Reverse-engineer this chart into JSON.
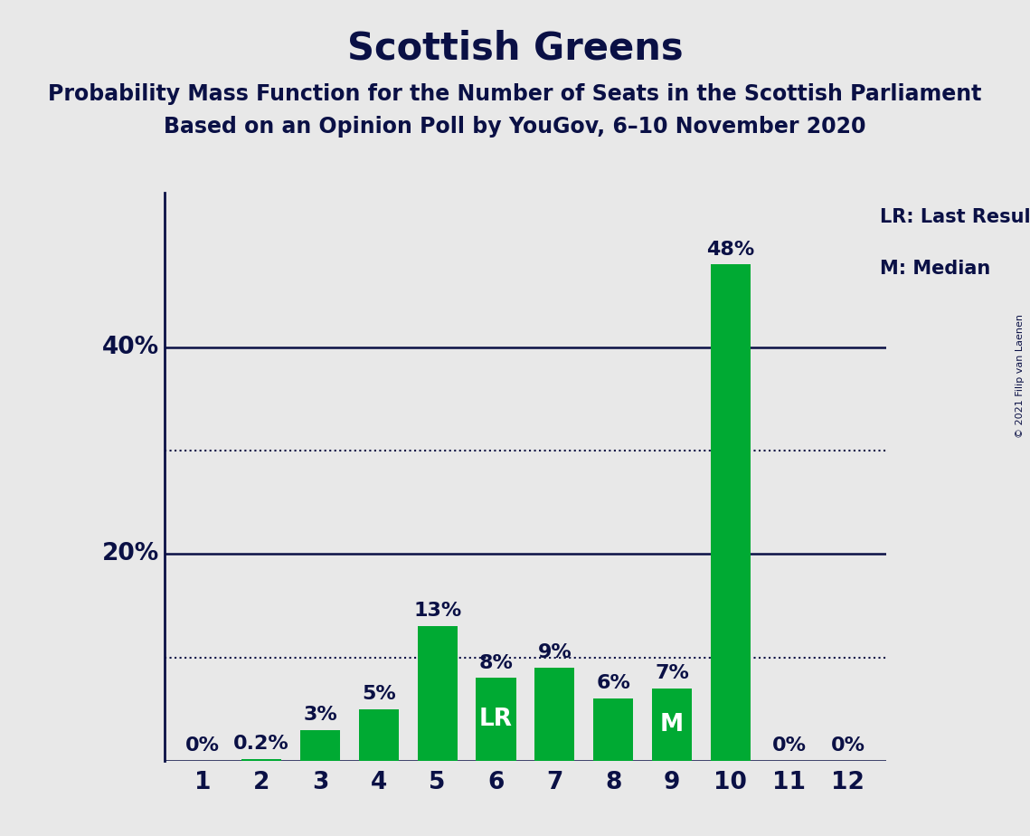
{
  "title": "Scottish Greens",
  "subtitle1": "Probability Mass Function for the Number of Seats in the Scottish Parliament",
  "subtitle2": "Based on an Opinion Poll by YouGov, 6–10 November 2020",
  "copyright": "© 2021 Filip van Laenen",
  "categories": [
    1,
    2,
    3,
    4,
    5,
    6,
    7,
    8,
    9,
    10,
    11,
    12
  ],
  "values": [
    0.0,
    0.2,
    3.0,
    5.0,
    13.0,
    8.0,
    9.0,
    6.0,
    7.0,
    48.0,
    0.0,
    0.0
  ],
  "labels": [
    "0%",
    "0.2%",
    "3%",
    "5%",
    "13%",
    "8%",
    "9%",
    "6%",
    "7%",
    "48%",
    "0%",
    "0%"
  ],
  "bar_color": "#00AA33",
  "background_color": "#E8E8E8",
  "text_color": "#0A1045",
  "dotted_lines": [
    10.0,
    30.0
  ],
  "solid_lines": [
    0.0,
    20.0,
    40.0
  ],
  "lr_bar_idx": 5,
  "median_bar_idx": 8,
  "ylim": [
    0,
    55
  ],
  "legend_lr": "LR: Last Result",
  "legend_m": "M: Median",
  "title_fontsize": 30,
  "subtitle_fontsize": 17,
  "bar_label_fontsize": 16,
  "axis_tick_fontsize": 19,
  "ytick_labels_left": [
    "40%",
    "20%"
  ],
  "ytick_values_left": [
    40,
    20
  ]
}
